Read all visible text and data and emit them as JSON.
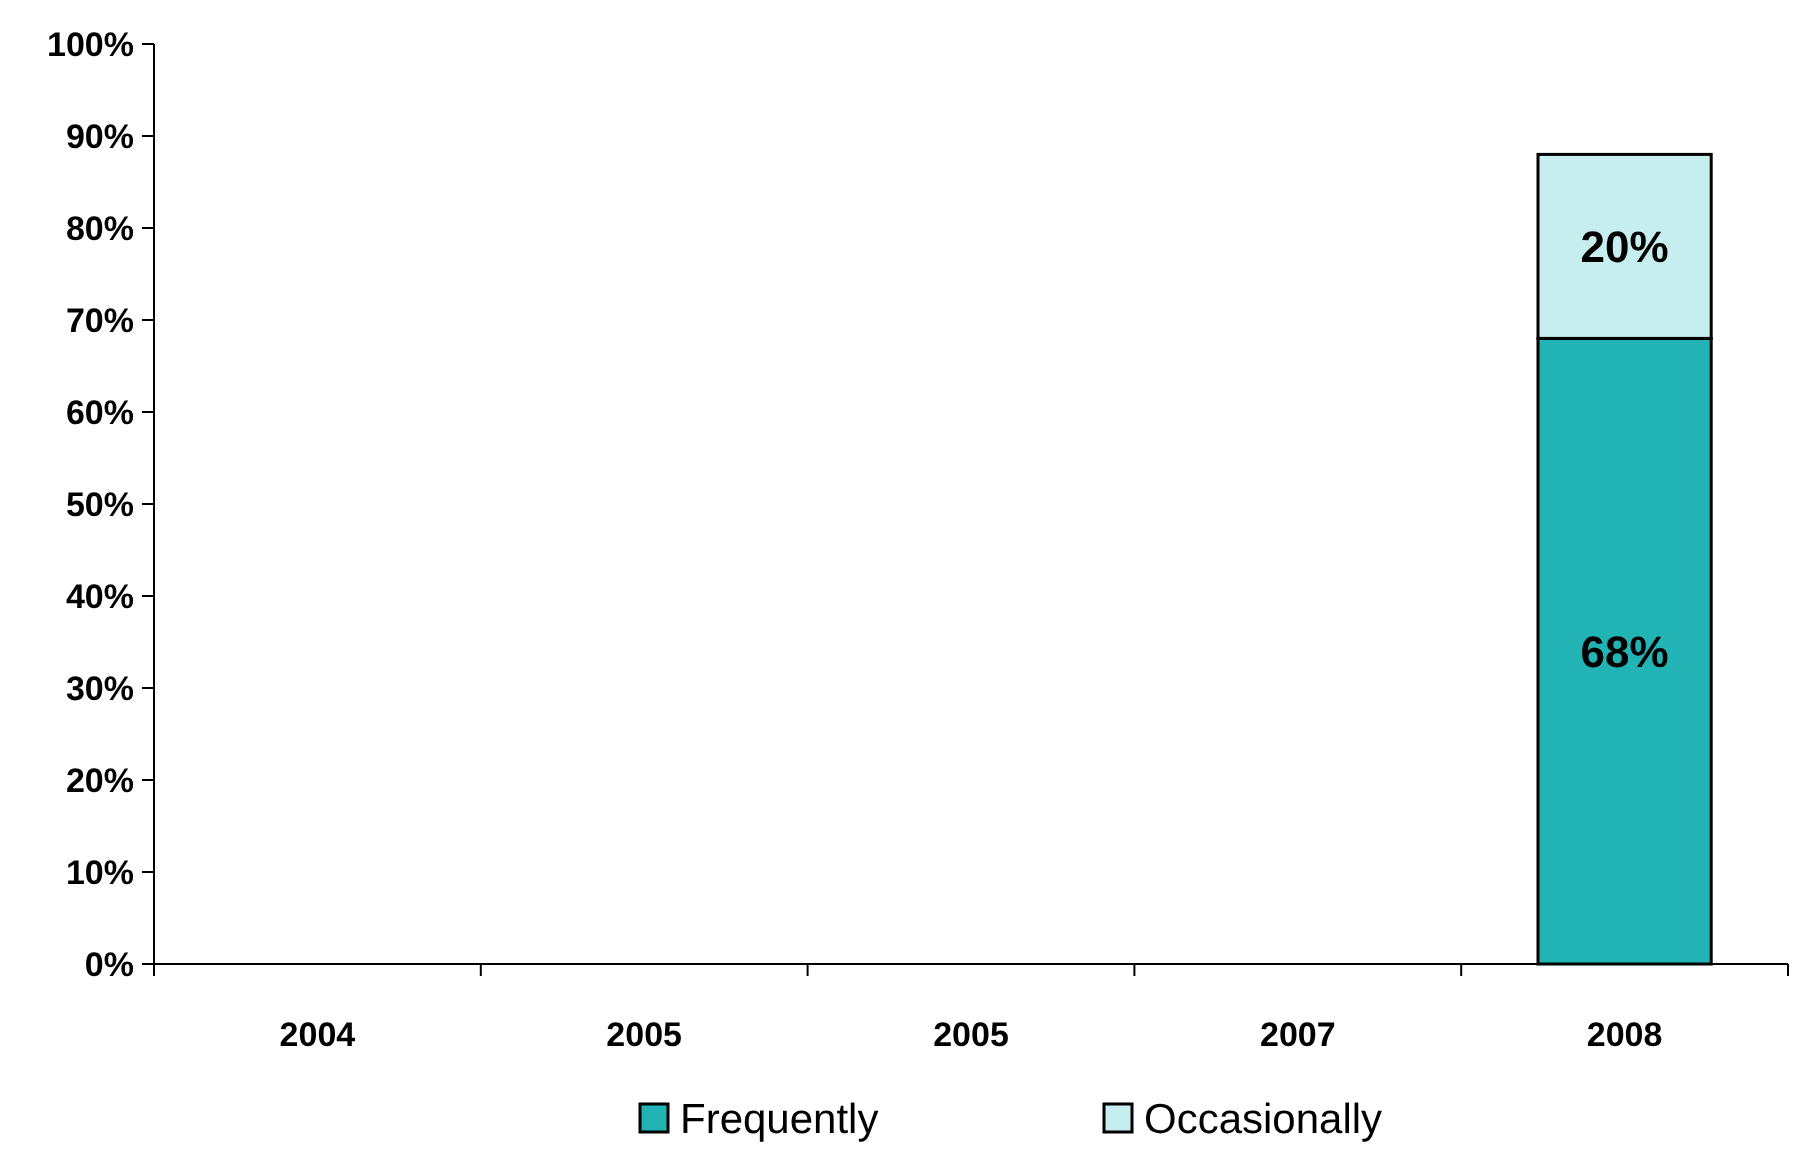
{
  "chart_data": {
    "type": "bar",
    "stacked": true,
    "categories": [
      "2004",
      "2005",
      "2005",
      "2007",
      "2008"
    ],
    "series": [
      {
        "name": "Frequently",
        "color": "#22b4b4",
        "values": [
          null,
          null,
          null,
          null,
          68
        ],
        "value_labels": [
          null,
          null,
          null,
          null,
          "68%"
        ]
      },
      {
        "name": "Occasionally",
        "color": "#c6eeee",
        "values": [
          null,
          null,
          null,
          null,
          20
        ],
        "value_labels": [
          null,
          null,
          null,
          null,
          "20%"
        ]
      }
    ],
    "ylim": [
      0,
      100
    ],
    "yticks": [
      {
        "value": 0,
        "label": "0%"
      },
      {
        "value": 10,
        "label": "10%"
      },
      {
        "value": 20,
        "label": "20%"
      },
      {
        "value": 30,
        "label": "30%"
      },
      {
        "value": 40,
        "label": "40%"
      },
      {
        "value": 50,
        "label": "50%"
      },
      {
        "value": 60,
        "label": "60%"
      },
      {
        "value": 70,
        "label": "70%"
      },
      {
        "value": 80,
        "label": "80%"
      },
      {
        "value": 90,
        "label": "90%"
      },
      {
        "value": 100,
        "label": "100%"
      }
    ],
    "legend": "bottom"
  }
}
